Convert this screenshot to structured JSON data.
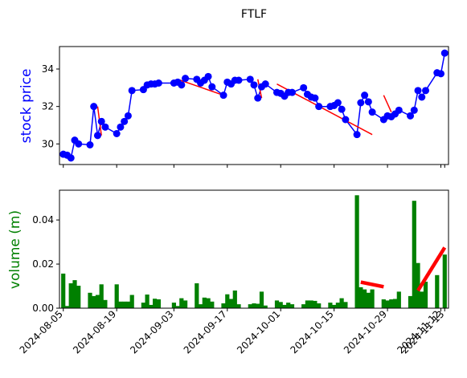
{
  "chart_data": [
    {
      "type": "line",
      "title": "FTLF",
      "ylabel": "stock price",
      "ylim": [
        28.9,
        35.2
      ],
      "yticks": [
        30,
        32,
        34
      ],
      "xlim": [
        "2024-08-04",
        "2024-11-14"
      ],
      "xticks": [
        "2024-08-05",
        "2024-08-19",
        "2024-09-03",
        "2024-09-17",
        "2024-10-01",
        "2024-10-15",
        "2024-10-29",
        "2024-11-12",
        "2024-11-13"
      ],
      "colors": {
        "line": "#0000ff",
        "marker": "#0000ff",
        "trend": "#ff0000",
        "ylabel": "#0000ff"
      },
      "series": [
        {
          "x": [
            "2024-08-05",
            "2024-08-06",
            "2024-08-07",
            "2024-08-08",
            "2024-08-09",
            "2024-08-12",
            "2024-08-13",
            "2024-08-14",
            "2024-08-15",
            "2024-08-16",
            "2024-08-19",
            "2024-08-20",
            "2024-08-21",
            "2024-08-22",
            "2024-08-23",
            "2024-08-26",
            "2024-08-27",
            "2024-08-28",
            "2024-08-29",
            "2024-08-30",
            "2024-09-03",
            "2024-09-04",
            "2024-09-05",
            "2024-09-06",
            "2024-09-09",
            "2024-09-10",
            "2024-09-11",
            "2024-09-12",
            "2024-09-13",
            "2024-09-16",
            "2024-09-17",
            "2024-09-18",
            "2024-09-19",
            "2024-09-20",
            "2024-09-23",
            "2024-09-24",
            "2024-09-25",
            "2024-09-26",
            "2024-09-27",
            "2024-09-30",
            "2024-10-01",
            "2024-10-02",
            "2024-10-03",
            "2024-10-04",
            "2024-10-07",
            "2024-10-08",
            "2024-10-09",
            "2024-10-10",
            "2024-10-11",
            "2024-10-14",
            "2024-10-15",
            "2024-10-16",
            "2024-10-17",
            "2024-10-18",
            "2024-10-21",
            "2024-10-22",
            "2024-10-23",
            "2024-10-24",
            "2024-10-25",
            "2024-10-28",
            "2024-10-29",
            "2024-10-30",
            "2024-10-31",
            "2024-11-01",
            "2024-11-04",
            "2024-11-05",
            "2024-11-06",
            "2024-11-07",
            "2024-11-08",
            "2024-11-11",
            "2024-11-12",
            "2024-11-13"
          ],
          "values": [
            29.45,
            29.4,
            29.25,
            30.2,
            30,
            29.95,
            32,
            30.45,
            31.2,
            30.9,
            30.55,
            30.9,
            31.2,
            31.5,
            32.85,
            32.9,
            33.15,
            33.2,
            33.2,
            33.25,
            33.25,
            33.3,
            33.15,
            33.5,
            33.45,
            33.25,
            33.4,
            33.6,
            33.05,
            32.6,
            33.3,
            33.2,
            33.4,
            33.4,
            33.45,
            33.15,
            32.45,
            33.05,
            33.2,
            32.75,
            32.7,
            32.55,
            32.75,
            32.75,
            33,
            32.65,
            32.5,
            32.45,
            32,
            32,
            32.05,
            32.2,
            31.85,
            31.3,
            30.5,
            32.2,
            32.6,
            32.25,
            31.7,
            31.3,
            31.5,
            31.45,
            31.6,
            31.8,
            31.5,
            31.8,
            32.85,
            32.5,
            32.85,
            33.8,
            33.75,
            34.85
          ]
        }
      ],
      "trend_segments": [
        {
          "x": [
            "2024-08-14",
            "2024-08-15"
          ],
          "values": [
            32,
            30.45
          ]
        },
        {
          "x": [
            "2024-09-04",
            "2024-09-16"
          ],
          "values": [
            33.45,
            32.6
          ]
        },
        {
          "x": [
            "2024-09-25",
            "2024-09-26"
          ],
          "values": [
            33.45,
            32.45
          ]
        },
        {
          "x": [
            "2024-09-30",
            "2024-10-25"
          ],
          "values": [
            33.2,
            30.5
          ]
        },
        {
          "x": [
            "2024-10-28",
            "2024-10-30"
          ],
          "values": [
            32.6,
            31.7
          ]
        }
      ]
    },
    {
      "type": "bar",
      "ylabel": "volume (m)",
      "ylim": [
        0,
        0.0535
      ],
      "yticks": [
        0.0,
        0.02,
        0.04
      ],
      "xlim": [
        "2024-08-04",
        "2024-11-14"
      ],
      "xticks": [
        "2024-08-05",
        "2024-08-19",
        "2024-09-03",
        "2024-09-17",
        "2024-10-01",
        "2024-10-15",
        "2024-10-29",
        "2024-11-12",
        "2024-11-13"
      ],
      "colors": {
        "bar": "#008000",
        "trend": "#ff0000",
        "ylabel": "#008000"
      },
      "series": [
        {
          "x": [
            "2024-08-05",
            "2024-08-06",
            "2024-08-07",
            "2024-08-08",
            "2024-08-09",
            "2024-08-12",
            "2024-08-13",
            "2024-08-14",
            "2024-08-15",
            "2024-08-16",
            "2024-08-19",
            "2024-08-20",
            "2024-08-21",
            "2024-08-22",
            "2024-08-23",
            "2024-08-26",
            "2024-08-27",
            "2024-08-28",
            "2024-08-29",
            "2024-08-30",
            "2024-09-03",
            "2024-09-04",
            "2024-09-05",
            "2024-09-06",
            "2024-09-09",
            "2024-09-10",
            "2024-09-11",
            "2024-09-12",
            "2024-09-13",
            "2024-09-16",
            "2024-09-17",
            "2024-09-18",
            "2024-09-19",
            "2024-09-20",
            "2024-09-23",
            "2024-09-24",
            "2024-09-25",
            "2024-09-26",
            "2024-09-27",
            "2024-09-30",
            "2024-10-01",
            "2024-10-02",
            "2024-10-03",
            "2024-10-04",
            "2024-10-07",
            "2024-10-08",
            "2024-10-09",
            "2024-10-10",
            "2024-10-11",
            "2024-10-14",
            "2024-10-15",
            "2024-10-16",
            "2024-10-17",
            "2024-10-18",
            "2024-10-21",
            "2024-10-22",
            "2024-10-23",
            "2024-10-24",
            "2024-10-25",
            "2024-10-28",
            "2024-10-29",
            "2024-10-30",
            "2024-10-31",
            "2024-11-01",
            "2024-11-04",
            "2024-11-05",
            "2024-11-06",
            "2024-11-07",
            "2024-11-08",
            "2024-11-11",
            "2024-11-12",
            "2024-11-13"
          ],
          "values": [
            0.0157,
            0.001,
            0.0113,
            0.0127,
            0.0102,
            0.007,
            0.0055,
            0.006,
            0.0108,
            0.0037,
            0.0108,
            0.003,
            0.003,
            0.003,
            0.006,
            0.0025,
            0.0062,
            0.0015,
            0.0043,
            0.004,
            0.0025,
            0.001,
            0.0045,
            0.0035,
            0.0113,
            0.0018,
            0.0048,
            0.0045,
            0.003,
            0.0022,
            0.0063,
            0.0042,
            0.008,
            0.0018,
            0.0018,
            0.0022,
            0.002,
            0.0075,
            0.0012,
            0.0035,
            0.0028,
            0.0015,
            0.0025,
            0.0018,
            0.0018,
            0.0035,
            0.0035,
            0.0033,
            0.0022,
            0.0025,
            0.0015,
            0.0025,
            0.0045,
            0.0028,
            0.0512,
            0.0095,
            0.0085,
            0.007,
            0.0085,
            0.004,
            0.0035,
            0.004,
            0.0042,
            0.0075,
            0.0055,
            0.0487,
            0.0205,
            0.0075,
            0.012,
            0.015,
            0.0,
            0.0243
          ]
        }
      ],
      "trend_segments": [
        {
          "x": [
            "2024-10-22",
            "2024-10-28"
          ],
          "values": [
            0.0118,
            0.0097
          ]
        },
        {
          "x": [
            "2024-11-06",
            "2024-11-13"
          ],
          "values": [
            0.008,
            0.0275
          ]
        }
      ]
    }
  ]
}
